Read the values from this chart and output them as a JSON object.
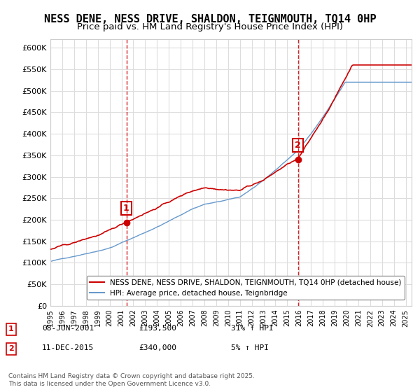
{
  "title": "NESS DENE, NESS DRIVE, SHALDON, TEIGNMOUTH, TQ14 0HP",
  "subtitle": "Price paid vs. HM Land Registry's House Price Index (HPI)",
  "ylim": [
    0,
    620000
  ],
  "yticks": [
    0,
    50000,
    100000,
    150000,
    200000,
    250000,
    300000,
    350000,
    400000,
    450000,
    500000,
    550000,
    600000
  ],
  "ytick_labels": [
    "£0",
    "£50K",
    "£100K",
    "£150K",
    "£200K",
    "£250K",
    "£300K",
    "£350K",
    "£400K",
    "£450K",
    "£500K",
    "£550K",
    "£600K"
  ],
  "sale1_date": "08-JUN-2001",
  "sale1_price": 193500,
  "sale1_price_str": "£193,500",
  "sale1_hpi": "31% ↑ HPI",
  "sale2_date": "11-DEC-2015",
  "sale2_price": 340000,
  "sale2_price_str": "£340,000",
  "sale2_hpi": "5% ↑ HPI",
  "sale1_x": 2001.44,
  "sale2_x": 2015.94,
  "red_line_color": "#cc0000",
  "blue_line_color": "#6699cc",
  "vline_color": "#cc0000",
  "grid_color": "#dddddd",
  "background_color": "#ffffff",
  "legend_label1": "NESS DENE, NESS DRIVE, SHALDON, TEIGNMOUTH, TQ14 0HP (detached house)",
  "legend_label2": "HPI: Average price, detached house, Teignbridge",
  "footer": "Contains HM Land Registry data © Crown copyright and database right 2025.\nThis data is licensed under the Open Government Licence v3.0.",
  "title_fontsize": 11,
  "subtitle_fontsize": 9.5
}
